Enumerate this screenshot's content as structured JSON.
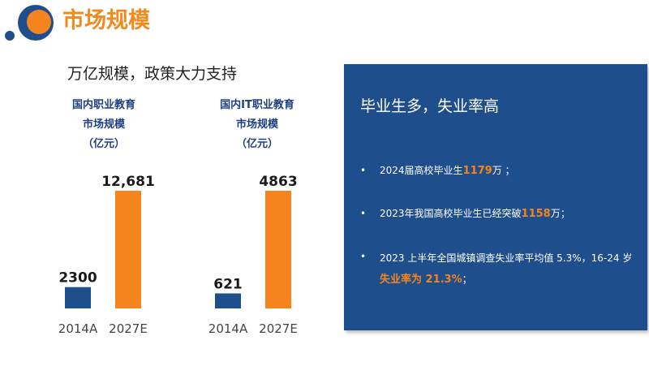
{
  "colors": {
    "navy": "#1f4e8c",
    "orange": "#f5841f",
    "title_orange": "#f08a1c",
    "chart_title": "#1e3f80"
  },
  "header": {
    "title": "市场规模"
  },
  "subtitle": "万亿规模，政策大力支持",
  "chart_data": [
    {
      "type": "bar",
      "title": [
        "国内职业教育",
        "市场规模",
        "（亿元）"
      ],
      "categories": [
        "2014A",
        "2027E"
      ],
      "values": [
        2300,
        12681
      ],
      "value_labels": [
        "2300",
        "12,681"
      ],
      "unit": "亿元",
      "bar_colors": [
        "#1f4e8c",
        "#f5841f"
      ]
    },
    {
      "type": "bar",
      "title": [
        "国内IT职业教育",
        "市场规模",
        "（亿元）"
      ],
      "categories": [
        "2014A",
        "2027E"
      ],
      "values": [
        621,
        4863
      ],
      "value_labels": [
        "621",
        "4863"
      ],
      "unit": "亿元",
      "bar_colors": [
        "#1f4e8c",
        "#f5841f"
      ]
    }
  ],
  "panel": {
    "title": "毕业生多，失业率高",
    "bullet_symbol": "•",
    "bullets": [
      {
        "pre": "2024届高校毕业生",
        "hl": "1179",
        "post": "万 ；"
      },
      {
        "pre": "2023年我国高校毕业生已经突破",
        "hl": "1158",
        "post": "万；"
      },
      {
        "pre": "2023 上半年全国城镇调查失业率平均值 5.3%，16-24 岁",
        "hl": "失业率为 21.3%",
        "post": "；"
      }
    ]
  }
}
